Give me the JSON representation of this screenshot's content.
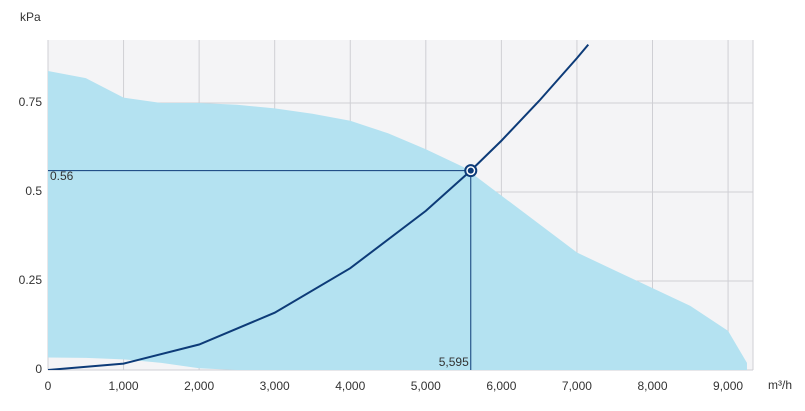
{
  "chart_data": {
    "type": "line",
    "y_axis_label": "kPa",
    "x_axis_label": "m³/h",
    "xlim": [
      0,
      9330
    ],
    "ylim": [
      0,
      0.927
    ],
    "xticks": [
      0,
      {
        "value": 1000,
        "label": "1,000"
      },
      {
        "value": 2000,
        "label": "2,000"
      },
      {
        "value": 3000,
        "label": "3,000"
      },
      {
        "value": 4000,
        "label": "4,000"
      },
      {
        "value": 5000,
        "label": "5,000"
      },
      {
        "value": 6000,
        "label": "6,000"
      },
      {
        "value": 7000,
        "label": "7,000"
      },
      {
        "value": 8000,
        "label": "8,000"
      },
      {
        "value": 9000,
        "label": "9,000"
      }
    ],
    "yticks": [
      0,
      0.25,
      0.5,
      0.75
    ],
    "grid": true,
    "area": {
      "color": "#b4e2f1",
      "x": [
        0,
        500,
        1000,
        1500,
        2000,
        2500,
        3000,
        3500,
        4000,
        4500,
        5000,
        5500,
        6000,
        6500,
        7000,
        7500,
        8000,
        8500,
        9000,
        9250
      ],
      "upper": [
        0.84,
        0.82,
        0.765,
        0.75,
        0.75,
        0.745,
        0.735,
        0.72,
        0.7,
        0.665,
        0.62,
        0.57,
        0.49,
        0.41,
        0.33,
        0.28,
        0.23,
        0.18,
        0.11,
        0.02
      ],
      "lower": [
        0.035,
        0.034,
        0.03,
        0.02,
        0.005,
        0,
        0,
        0,
        0,
        0,
        0,
        0,
        0,
        0,
        0,
        0,
        0,
        0,
        0,
        0
      ]
    },
    "curve": {
      "color": "#0d3b78",
      "x": [
        0,
        1000,
        2000,
        3000,
        4000,
        5000,
        5595,
        6000,
        6500,
        7000,
        7150
      ],
      "values": [
        0,
        0.0179,
        0.0716,
        0.161,
        0.286,
        0.447,
        0.56,
        0.644,
        0.756,
        0.876,
        0.914
      ]
    },
    "point": {
      "x": 5595,
      "y": 0.56,
      "x_label": "5,595",
      "y_label": "0.56",
      "color": "#0d3b78"
    }
  }
}
